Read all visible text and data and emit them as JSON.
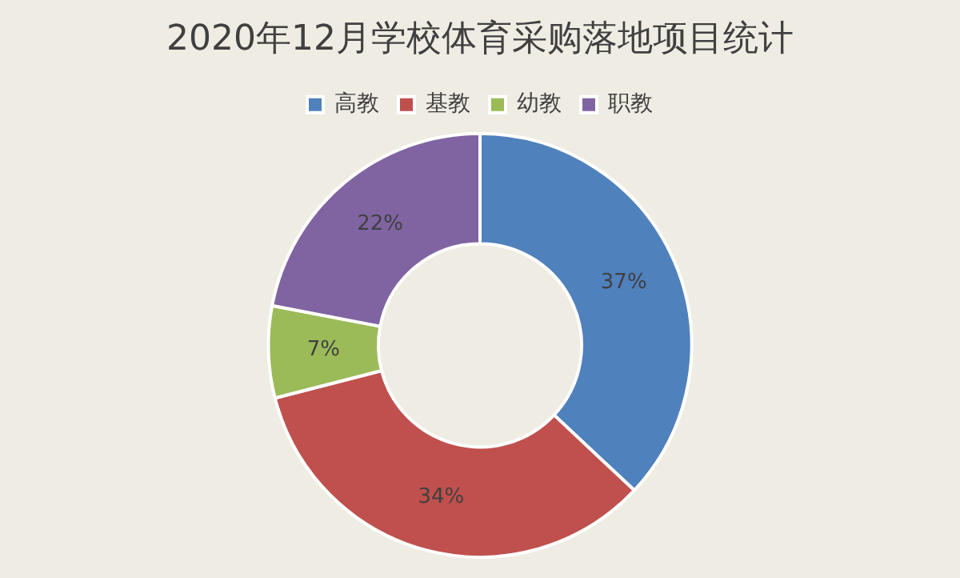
{
  "chart_data": {
    "type": "donut",
    "title": "2020年12月学校体育采购落地项目统计",
    "categories": [
      "高教",
      "基教",
      "幼教",
      "职教"
    ],
    "values": [
      37,
      34,
      7,
      22
    ],
    "colors": [
      "#4f81bd",
      "#c0504d",
      "#9bbb59",
      "#8064a2"
    ],
    "value_labels": [
      "37%",
      "34%",
      "7%",
      "22%"
    ],
    "legend": "top"
  }
}
